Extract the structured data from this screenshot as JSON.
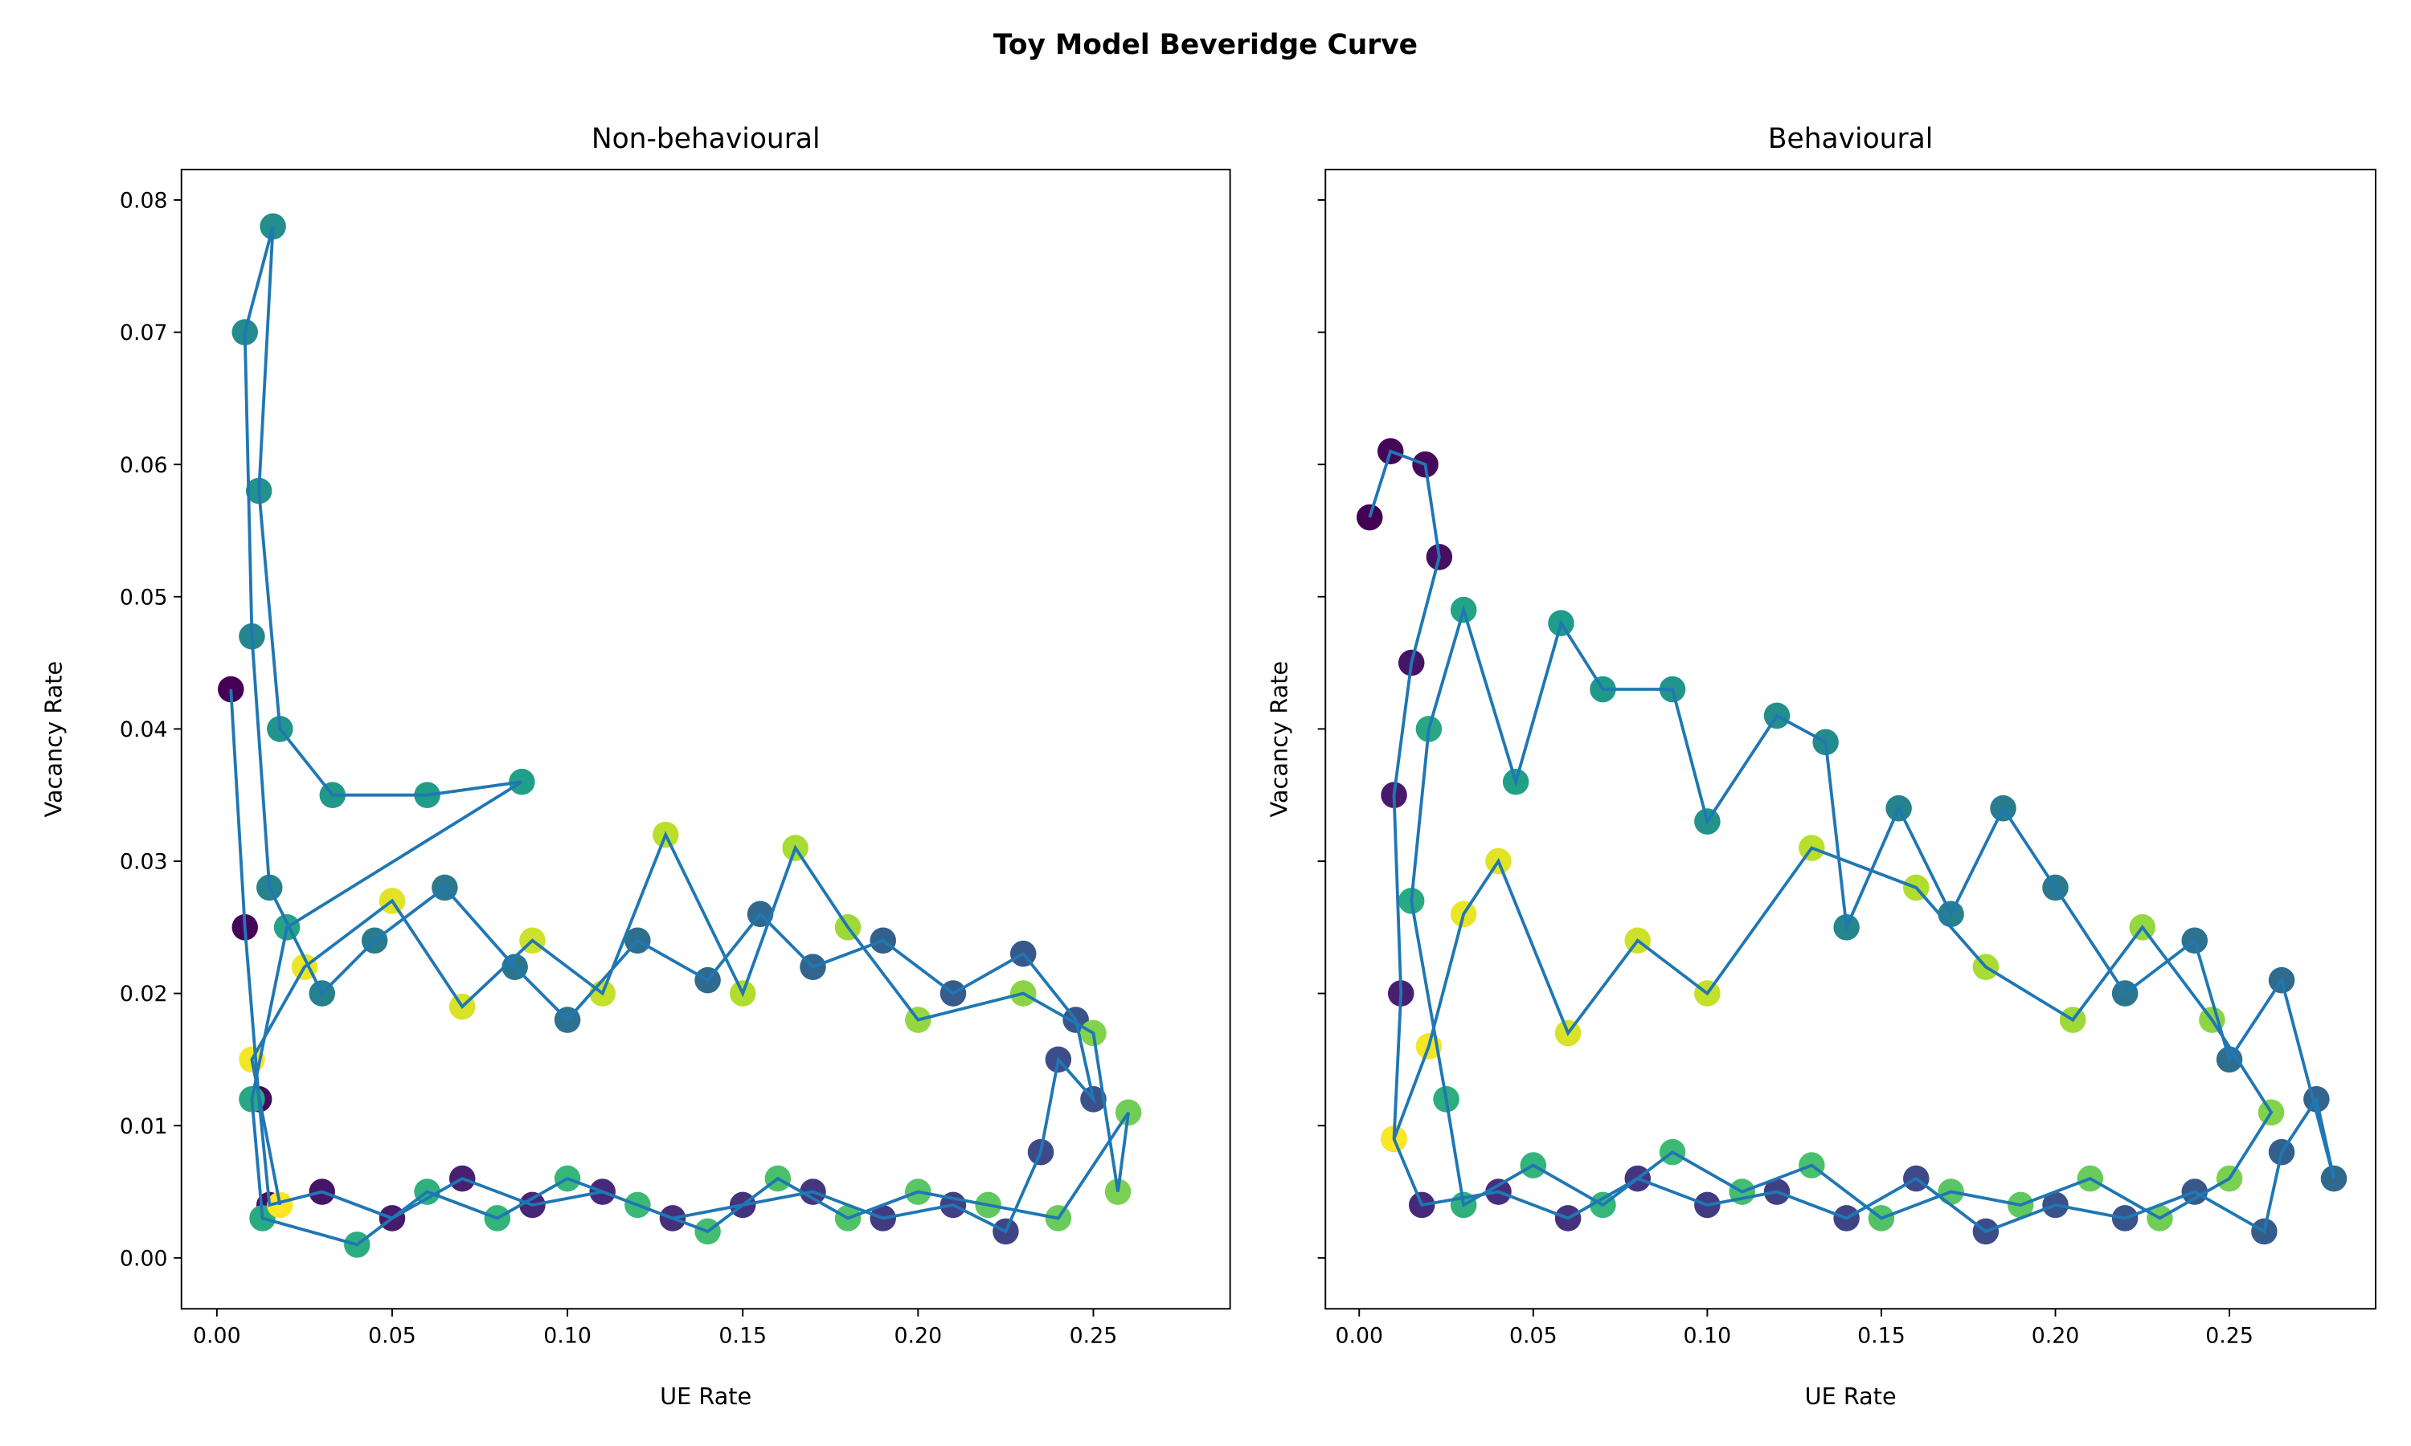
{
  "title": "Toy Model Beveridge Curve",
  "chart_data": [
    {
      "type": "scatter",
      "title": "Non-behavioural",
      "xlabel": "UE Rate",
      "ylabel": "Vacancy Rate",
      "colormap": "viridis",
      "line_color": "#1f77b4",
      "ytick_labels": true,
      "x": [
        0.004,
        0.008,
        0.012,
        0.015,
        0.03,
        0.05,
        0.07,
        0.09,
        0.11,
        0.13,
        0.15,
        0.17,
        0.19,
        0.21,
        0.225,
        0.235,
        0.24,
        0.25,
        0.245,
        0.23,
        0.21,
        0.19,
        0.17,
        0.155,
        0.14,
        0.12,
        0.1,
        0.085,
        0.065,
        0.045,
        0.03,
        0.015,
        0.01,
        0.008,
        0.016,
        0.012,
        0.018,
        0.033,
        0.06,
        0.087,
        0.02,
        0.01,
        0.013,
        0.04,
        0.06,
        0.08,
        0.1,
        0.12,
        0.14,
        0.16,
        0.18,
        0.2,
        0.22,
        0.24,
        0.26,
        0.257,
        0.25,
        0.23,
        0.2,
        0.18,
        0.165,
        0.15,
        0.128,
        0.11,
        0.09,
        0.07,
        0.05,
        0.025,
        0.01,
        0.018
      ],
      "y": [
        0.043,
        0.025,
        0.012,
        0.004,
        0.005,
        0.003,
        0.006,
        0.004,
        0.005,
        0.003,
        0.004,
        0.005,
        0.003,
        0.004,
        0.002,
        0.008,
        0.015,
        0.012,
        0.018,
        0.023,
        0.02,
        0.024,
        0.022,
        0.026,
        0.021,
        0.024,
        0.018,
        0.022,
        0.028,
        0.024,
        0.02,
        0.028,
        0.047,
        0.07,
        0.078,
        0.058,
        0.04,
        0.035,
        0.035,
        0.036,
        0.025,
        0.012,
        0.003,
        0.001,
        0.005,
        0.003,
        0.006,
        0.004,
        0.002,
        0.006,
        0.003,
        0.005,
        0.004,
        0.003,
        0.011,
        0.005,
        0.017,
        0.02,
        0.018,
        0.025,
        0.031,
        0.02,
        0.032,
        0.02,
        0.024,
        0.019,
        0.027,
        0.022,
        0.015,
        0.004
      ],
      "xlim": [
        -0.0101,
        0.289
      ],
      "ylim": [
        -0.00385,
        0.0823
      ],
      "xticks": [
        {
          "value": 0,
          "label": "0.00"
        },
        {
          "value": 0.05,
          "label": "0.05"
        },
        {
          "value": 0.1,
          "label": "0.10"
        },
        {
          "value": 0.15,
          "label": "0.15"
        },
        {
          "value": 0.2,
          "label": "0.20"
        },
        {
          "value": 0.25,
          "label": "0.25"
        }
      ],
      "yticks": [
        {
          "value": 0,
          "label": "0.00"
        },
        {
          "value": 0.01,
          "label": "0.01"
        },
        {
          "value": 0.02,
          "label": "0.02"
        },
        {
          "value": 0.03,
          "label": "0.03"
        },
        {
          "value": 0.04,
          "label": "0.04"
        },
        {
          "value": 0.05,
          "label": "0.05"
        },
        {
          "value": 0.06,
          "label": "0.06"
        },
        {
          "value": 0.07,
          "label": "0.07"
        },
        {
          "value": 0.08,
          "label": "0.08"
        }
      ]
    },
    {
      "type": "scatter",
      "title": "Behavioural",
      "xlabel": "UE Rate",
      "ylabel": "Vacancy Rate",
      "colormap": "viridis",
      "line_color": "#1f77b4",
      "ytick_labels": false,
      "x": [
        0.003,
        0.009,
        0.019,
        0.023,
        0.015,
        0.01,
        0.012,
        0.01,
        0.018,
        0.04,
        0.06,
        0.08,
        0.1,
        0.12,
        0.14,
        0.16,
        0.18,
        0.2,
        0.22,
        0.24,
        0.26,
        0.265,
        0.275,
        0.28,
        0.265,
        0.25,
        0.24,
        0.22,
        0.2,
        0.185,
        0.17,
        0.155,
        0.14,
        0.134,
        0.12,
        0.1,
        0.09,
        0.07,
        0.058,
        0.045,
        0.03,
        0.02,
        0.015,
        0.025,
        0.03,
        0.05,
        0.07,
        0.09,
        0.11,
        0.13,
        0.15,
        0.17,
        0.19,
        0.21,
        0.23,
        0.25,
        0.262,
        0.245,
        0.225,
        0.205,
        0.18,
        0.16,
        0.13,
        0.1,
        0.08,
        0.06,
        0.04,
        0.03,
        0.02,
        0.01
      ],
      "y": [
        0.056,
        0.061,
        0.06,
        0.053,
        0.045,
        0.035,
        0.02,
        0.009,
        0.004,
        0.005,
        0.003,
        0.006,
        0.004,
        0.005,
        0.003,
        0.006,
        0.002,
        0.004,
        0.003,
        0.005,
        0.002,
        0.008,
        0.012,
        0.006,
        0.021,
        0.015,
        0.024,
        0.02,
        0.028,
        0.034,
        0.026,
        0.034,
        0.025,
        0.039,
        0.041,
        0.033,
        0.043,
        0.043,
        0.048,
        0.036,
        0.049,
        0.04,
        0.027,
        0.012,
        0.004,
        0.007,
        0.004,
        0.008,
        0.005,
        0.007,
        0.003,
        0.005,
        0.004,
        0.006,
        0.003,
        0.006,
        0.011,
        0.018,
        0.025,
        0.018,
        0.022,
        0.028,
        0.031,
        0.02,
        0.024,
        0.017,
        0.03,
        0.026,
        0.016,
        0.009
      ],
      "xlim": [
        -0.0097,
        0.292
      ],
      "ylim": [
        -0.00385,
        0.0823
      ],
      "xticks": [
        {
          "value": 0,
          "label": "0.00"
        },
        {
          "value": 0.05,
          "label": "0.05"
        },
        {
          "value": 0.1,
          "label": "0.10"
        },
        {
          "value": 0.15,
          "label": "0.15"
        },
        {
          "value": 0.2,
          "label": "0.20"
        },
        {
          "value": 0.25,
          "label": "0.25"
        }
      ],
      "yticks": [
        0,
        0.01,
        0.02,
        0.03,
        0.04,
        0.05,
        0.06,
        0.07,
        0.08
      ]
    }
  ]
}
